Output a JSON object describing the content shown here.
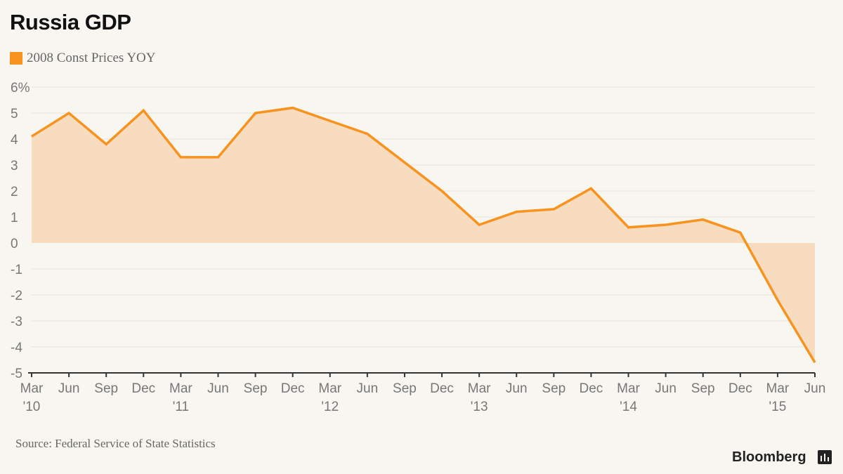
{
  "title": "Russia GDP",
  "legend": {
    "label": "2008 Const Prices YOY",
    "color": "#f7931e"
  },
  "source": "Source: Federal Service of State Statistics",
  "brand": "Bloomberg",
  "chart_data": {
    "type": "area",
    "title": "Russia GDP",
    "ylim": [
      -5,
      6
    ],
    "y_ticks": [
      "6%",
      "5",
      "4",
      "3",
      "2",
      "1",
      "0",
      "-1",
      "-2",
      "-3",
      "-4",
      "-5"
    ],
    "y_tick_values": [
      6,
      5,
      4,
      3,
      2,
      1,
      0,
      -1,
      -2,
      -3,
      -4,
      -5
    ],
    "x_month_labels": [
      "Mar",
      "Jun",
      "Sep",
      "Dec",
      "Mar",
      "Jun",
      "Sep",
      "Dec",
      "Mar",
      "Jun",
      "Sep",
      "Dec",
      "Mar",
      "Jun",
      "Sep",
      "Dec",
      "Mar",
      "Jun",
      "Sep",
      "Dec",
      "Mar",
      "Jun"
    ],
    "x_year_labels": {
      "0": "'10",
      "4": "'11",
      "8": "'12",
      "12": "'13",
      "16": "'14",
      "20": "'15"
    },
    "grid": true,
    "legend_position": "top-left",
    "series": [
      {
        "name": "2008 Const Prices YOY",
        "color": "#f7931e",
        "fill": "#f7dcc0",
        "values": [
          4.1,
          5.0,
          3.8,
          5.1,
          3.3,
          3.3,
          5.0,
          5.2,
          4.7,
          4.2,
          3.1,
          2.0,
          0.7,
          1.2,
          1.3,
          2.1,
          0.6,
          0.7,
          0.9,
          0.4,
          -2.2,
          -4.6
        ]
      }
    ]
  }
}
